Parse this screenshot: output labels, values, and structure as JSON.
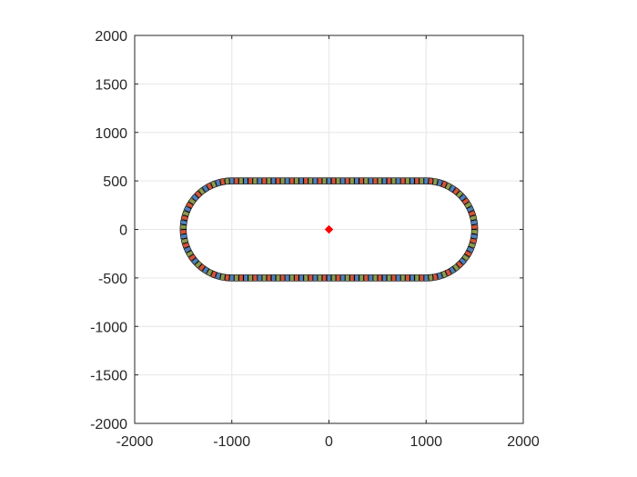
{
  "chart_data": {
    "type": "scatter",
    "title": "",
    "xlabel": "",
    "ylabel": "",
    "xlim": [
      -2000,
      2000
    ],
    "ylim": [
      -2000,
      2000
    ],
    "grid": true,
    "box": true,
    "aspect": "equal",
    "xticks": [
      -2000,
      -1000,
      0,
      1000,
      2000
    ],
    "yticks": [
      -2000,
      -1500,
      -1000,
      -500,
      0,
      500,
      1000,
      1500,
      2000
    ],
    "xtick_labels": [
      "-2000",
      "-1000",
      "0",
      "1000",
      "2000"
    ],
    "ytick_labels": [
      "-2000",
      "-1500",
      "-1000",
      "-500",
      "0",
      "500",
      "1000",
      "1500",
      "2000"
    ],
    "track": {
      "shape": "stadium",
      "straight_x_range": [
        -1000,
        1000
      ],
      "half_width": 500,
      "car_count": 150,
      "car_colors": [
        "#4f7fb8",
        "#d2533a",
        "#8a9a4e"
      ],
      "car_outline": "#000000"
    },
    "series": [
      {
        "marker": "diamond",
        "color": "#ff0000",
        "points": [
          [
            0,
            0
          ]
        ]
      }
    ]
  }
}
